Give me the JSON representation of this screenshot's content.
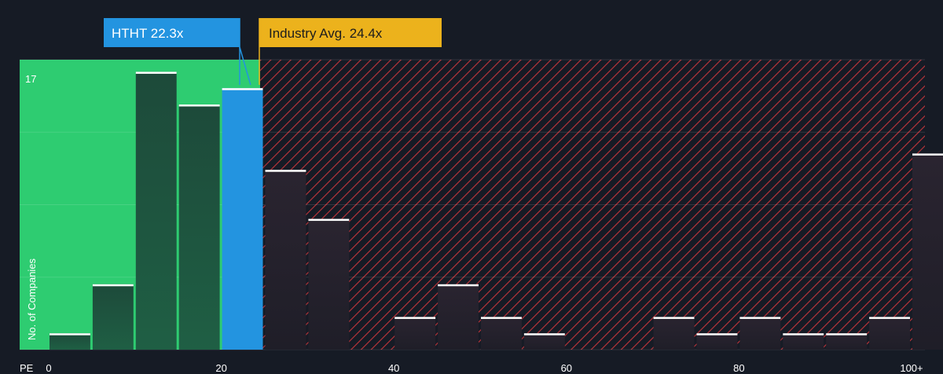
{
  "chart_data": {
    "type": "bar",
    "xlabel": "PE",
    "ylabel": "No. of Companies",
    "y_max_label": "17",
    "ylim": [
      0,
      17
    ],
    "xlim": [
      0,
      102
    ],
    "x_ticks": [
      {
        "value": 0,
        "label": "0"
      },
      {
        "value": 20,
        "label": "20"
      },
      {
        "value": 40,
        "label": "40"
      },
      {
        "value": 60,
        "label": "60"
      },
      {
        "value": 80,
        "label": "80"
      },
      {
        "value": 100,
        "label": "100+"
      }
    ],
    "bin_width": 5,
    "bins": [
      {
        "start": 0,
        "value": 1
      },
      {
        "start": 5,
        "value": 4
      },
      {
        "start": 10,
        "value": 17
      },
      {
        "start": 15,
        "value": 15
      },
      {
        "start": 20,
        "value": 16
      },
      {
        "start": 25,
        "value": 11
      },
      {
        "start": 30,
        "value": 8
      },
      {
        "start": 40,
        "value": 2
      },
      {
        "start": 45,
        "value": 4
      },
      {
        "start": 50,
        "value": 2
      },
      {
        "start": 55,
        "value": 1
      },
      {
        "start": 70,
        "value": 2
      },
      {
        "start": 75,
        "value": 1
      },
      {
        "start": 80,
        "value": 2
      },
      {
        "start": 85,
        "value": 1
      },
      {
        "start": 90,
        "value": 1
      },
      {
        "start": 95,
        "value": 2
      },
      {
        "start": 100,
        "value": 12
      }
    ],
    "company": {
      "label": "HTHT 22.3x",
      "value": 22.3,
      "color": "#2394e0"
    },
    "industry": {
      "label": "Industry Avg. 24.4x",
      "value": 24.4,
      "color": "#ecb21c"
    },
    "colors": {
      "fair_zone": "#2ecc71",
      "fair_bar": "#1d4d3a",
      "company_bar": "#2394e0",
      "over_zone_line": "#c0343a",
      "over_bar": "#2a2430",
      "bar_top": "#ffffff",
      "background": "#161b25"
    }
  }
}
